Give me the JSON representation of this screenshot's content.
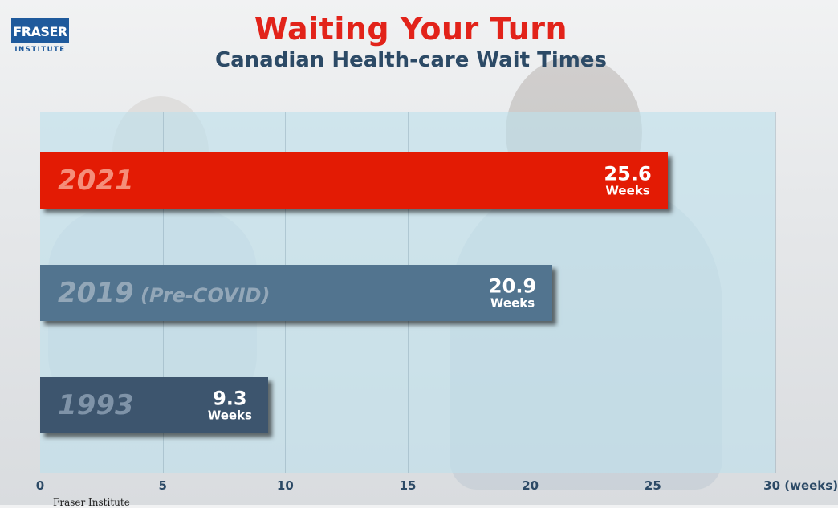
{
  "logo": {
    "name": "FRASER",
    "sub": "INSTITUTE"
  },
  "header": {
    "title": "Waiting Your Turn",
    "subtitle": "Canadian Health-care Wait Times"
  },
  "footer": {
    "text": "Fraser Institute"
  },
  "colors": {
    "bar_2021": "#e31b04",
    "bar_2019": "#52748f",
    "bar_1993": "#3d556e",
    "title": "#e2231a",
    "subtitle": "#2c4a66"
  },
  "chart_data": {
    "type": "bar",
    "orientation": "horizontal",
    "title": "Waiting Your Turn",
    "subtitle": "Canadian Health-care Wait Times",
    "xlim": [
      0,
      30
    ],
    "xticks": [
      0,
      5,
      10,
      15,
      20,
      25,
      30
    ],
    "xtick_labels": [
      "0",
      "5",
      "10",
      "15",
      "20",
      "25",
      "30 (weeks)"
    ],
    "grid": true,
    "bars": [
      {
        "label": "2021",
        "label_suffix": "",
        "value": 25.6,
        "value_text": "25.6",
        "unit": "Weeks",
        "color": "#e31b04",
        "label_color": "#f58e7a"
      },
      {
        "label": "2019",
        "label_suffix": "(Pre-COVID)",
        "value": 20.9,
        "value_text": "20.9",
        "unit": "Weeks",
        "color": "#52748f",
        "label_color": "#93a7b8"
      },
      {
        "label": "1993",
        "label_suffix": "",
        "value": 9.3,
        "value_text": "9.3",
        "unit": "Weeks",
        "color": "#3d556e",
        "label_color": "#7f93a8"
      }
    ]
  }
}
